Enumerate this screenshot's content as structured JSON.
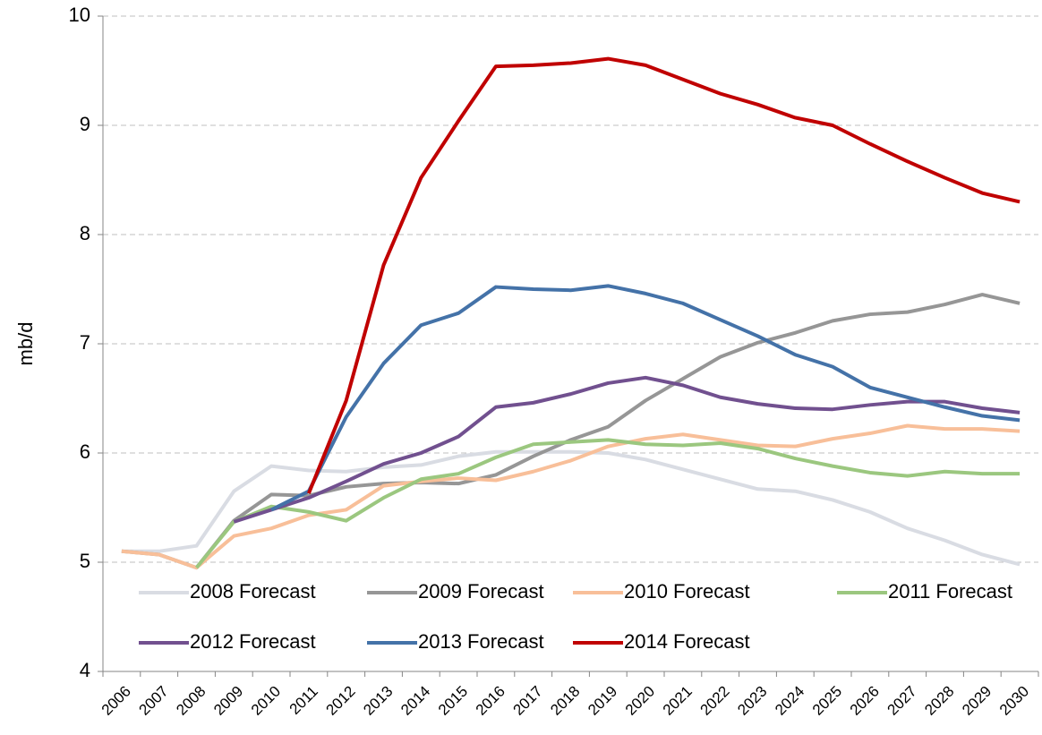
{
  "chart_data": {
    "type": "line",
    "y_label": "mb/d",
    "categories": [
      "2006",
      "2007",
      "2008",
      "2009",
      "2010",
      "2011",
      "2012",
      "2013",
      "2014",
      "2015",
      "2016",
      "2017",
      "2018",
      "2019",
      "2020",
      "2021",
      "2022",
      "2023",
      "2024",
      "2025",
      "2026",
      "2027",
      "2028",
      "2029",
      "2030"
    ],
    "series": [
      {
        "name": "2008 Forecast",
        "color": "#d9dce3",
        "values": [
          5.1,
          5.1,
          5.15,
          5.65,
          5.88,
          5.84,
          5.83,
          5.87,
          5.89,
          5.97,
          6.01,
          6.01,
          6.01,
          6.0,
          5.94,
          5.85,
          5.76,
          5.67,
          5.65,
          5.57,
          5.46,
          5.31,
          5.2,
          5.07,
          4.98
        ]
      },
      {
        "name": "2009 Forecast",
        "color": "#969696",
        "values": [
          5.1,
          5.07,
          4.95,
          5.38,
          5.62,
          5.61,
          5.69,
          5.72,
          5.73,
          5.72,
          5.8,
          5.97,
          6.12,
          6.24,
          6.48,
          6.68,
          6.88,
          7.01,
          7.1,
          7.21,
          7.27,
          7.29,
          7.36,
          7.45,
          7.37
        ]
      },
      {
        "name": "2010 Forecast",
        "color": "#f8bf99",
        "values": [
          5.1,
          5.07,
          4.95,
          5.24,
          5.31,
          5.43,
          5.48,
          5.7,
          5.74,
          5.77,
          5.75,
          5.83,
          5.93,
          6.06,
          6.13,
          6.17,
          6.12,
          6.07,
          6.06,
          6.13,
          6.18,
          6.25,
          6.22,
          6.22,
          6.2
        ]
      },
      {
        "name": "2011 Forecast",
        "color": "#9bc77f",
        "values": [
          null,
          null,
          4.95,
          5.37,
          5.51,
          5.46,
          5.38,
          5.59,
          5.76,
          5.81,
          5.96,
          6.08,
          6.1,
          6.12,
          6.08,
          6.07,
          6.09,
          6.04,
          5.95,
          5.88,
          5.82,
          5.79,
          5.83,
          5.81,
          5.81
        ]
      },
      {
        "name": "2012 Forecast",
        "color": "#71508f",
        "values": [
          null,
          null,
          null,
          5.37,
          5.48,
          5.59,
          5.74,
          5.9,
          6.0,
          6.15,
          6.42,
          6.46,
          6.54,
          6.64,
          6.69,
          6.62,
          6.51,
          6.45,
          6.41,
          6.4,
          6.44,
          6.47,
          6.47,
          6.41,
          6.37
        ]
      },
      {
        "name": "2013 Forecast",
        "color": "#4472a8",
        "values": [
          null,
          null,
          null,
          null,
          5.48,
          5.65,
          6.33,
          6.82,
          7.17,
          7.28,
          7.52,
          7.5,
          7.49,
          7.53,
          7.46,
          7.37,
          7.22,
          7.07,
          6.9,
          6.79,
          6.6,
          6.51,
          6.42,
          6.34,
          6.3
        ]
      },
      {
        "name": "2014 Forecast",
        "color": "#c00000",
        "values": [
          null,
          null,
          null,
          null,
          null,
          5.63,
          6.48,
          7.72,
          8.52,
          9.04,
          9.54,
          9.55,
          9.57,
          9.61,
          9.55,
          9.42,
          9.29,
          9.19,
          9.07,
          9.0,
          8.83,
          8.67,
          8.52,
          8.38,
          8.3
        ]
      }
    ],
    "ylim": [
      4,
      10
    ],
    "yticks": [
      4,
      5,
      6,
      7,
      8,
      9,
      10
    ],
    "grid": true,
    "legend": "lower center"
  }
}
